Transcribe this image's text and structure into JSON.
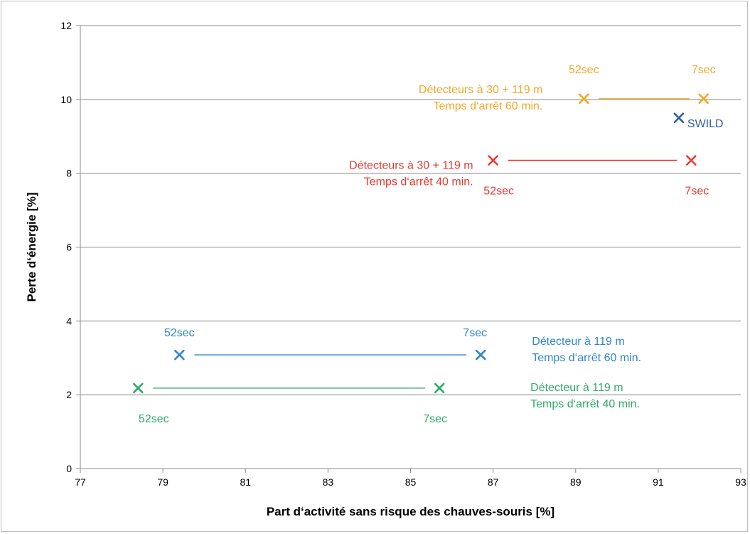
{
  "chart_data": {
    "type": "scatter",
    "xlabel": "Part d‘activité sans risque des chauves-souris [%]",
    "ylabel": "Perte d‘énergie [%]",
    "xlim": [
      77,
      93
    ],
    "ylim": [
      0,
      12
    ],
    "x_ticks": [
      "77",
      "79",
      "81",
      "83",
      "85",
      "87",
      "89",
      "91",
      "93"
    ],
    "y_ticks": [
      "0",
      "2",
      "4",
      "6",
      "8",
      "10",
      "12"
    ],
    "grid": "horizontal",
    "colors": {
      "orange": "#f5a623",
      "red": "#e8382f",
      "blue": "#2e86c8",
      "green": "#2eaa66",
      "dark_blue": "#2f5f9a"
    },
    "series": [
      {
        "color_key": "orange",
        "points": [
          {
            "x": 89.2,
            "y": 10.02,
            "label": "52sec"
          },
          {
            "x": 92.1,
            "y": 10.02,
            "label": "7sec"
          }
        ],
        "description": [
          "Détecteurs à 30 + 119 m",
          "Temps d‘arrêt 60 min."
        ]
      },
      {
        "color_key": "red",
        "points": [
          {
            "x": 87.0,
            "y": 8.35,
            "label": "52sec"
          },
          {
            "x": 91.8,
            "y": 8.35,
            "label": "7sec"
          }
        ],
        "description": [
          "Détecteurs à 30 + 119 m",
          "Temps d‘arrêt 40 min."
        ]
      },
      {
        "color_key": "blue",
        "points": [
          {
            "x": 79.4,
            "y": 3.08,
            "label": "52sec"
          },
          {
            "x": 86.7,
            "y": 3.08,
            "label": "7sec"
          }
        ],
        "description": [
          "Détecteur à 119 m",
          "Temps d‘arrêt 60 min."
        ]
      },
      {
        "color_key": "green",
        "points": [
          {
            "x": 78.4,
            "y": 2.18,
            "label": "52sec"
          },
          {
            "x": 85.7,
            "y": 2.18,
            "label": "7sec"
          }
        ],
        "description": [
          "Détecteur à 119 m",
          "Temps d‘arrêt 40 min."
        ]
      },
      {
        "color_key": "dark_blue",
        "points": [
          {
            "x": 91.5,
            "y": 9.5,
            "label": "SWILD"
          }
        ]
      }
    ]
  }
}
